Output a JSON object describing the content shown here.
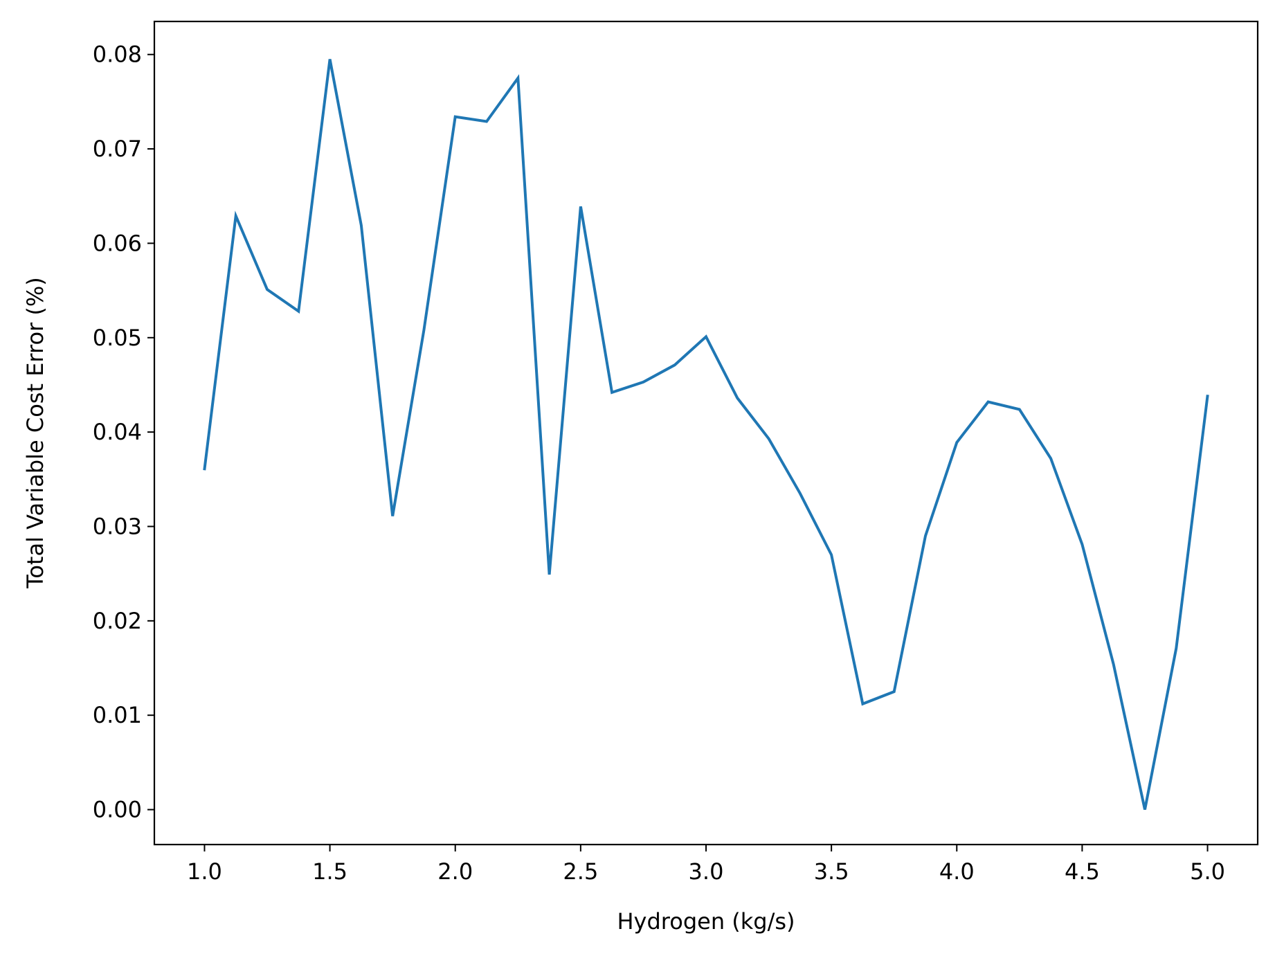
{
  "chart_data": {
    "type": "line",
    "title": "",
    "xlabel": "Hydrogen (kg/s)",
    "ylabel": "Total Variable Cost Error (%)",
    "xlim": [
      0.8,
      5.2
    ],
    "ylim": [
      -0.0037,
      0.0835
    ],
    "grid": false,
    "x_ticks": [
      1.0,
      1.5,
      2.0,
      2.5,
      3.0,
      3.5,
      4.0,
      4.5,
      5.0
    ],
    "x_tick_labels": [
      "1.0",
      "1.5",
      "2.0",
      "2.5",
      "3.0",
      "3.5",
      "4.0",
      "4.5",
      "5.0"
    ],
    "y_ticks": [
      0.0,
      0.01,
      0.02,
      0.03,
      0.04,
      0.05,
      0.06,
      0.07,
      0.08
    ],
    "y_tick_labels": [
      "0.00",
      "0.01",
      "0.02",
      "0.03",
      "0.04",
      "0.05",
      "0.06",
      "0.07",
      "0.08"
    ],
    "series": [
      {
        "color": "#1f77b4",
        "x": [
          1.0,
          1.125,
          1.25,
          1.375,
          1.5,
          1.625,
          1.75,
          1.875,
          2.0,
          2.125,
          2.25,
          2.375,
          2.5,
          2.625,
          2.75,
          2.875,
          3.0,
          3.125,
          3.25,
          3.375,
          3.5,
          3.625,
          3.75,
          3.875,
          4.0,
          4.125,
          4.25,
          4.375,
          4.5,
          4.625,
          4.75,
          4.875,
          5.0
        ],
        "values": [
          0.0361,
          0.0629,
          0.0551,
          0.0528,
          0.0795,
          0.0619,
          0.0311,
          0.0508,
          0.0734,
          0.0729,
          0.0775,
          0.0249,
          0.0639,
          0.0442,
          0.0453,
          0.0471,
          0.0501,
          0.0436,
          0.0393,
          0.0335,
          0.027,
          0.0112,
          0.0125,
          0.029,
          0.0389,
          0.0432,
          0.0424,
          0.0372,
          0.0281,
          0.0154,
          0.0,
          0.0171,
          0.0438
        ]
      }
    ]
  }
}
